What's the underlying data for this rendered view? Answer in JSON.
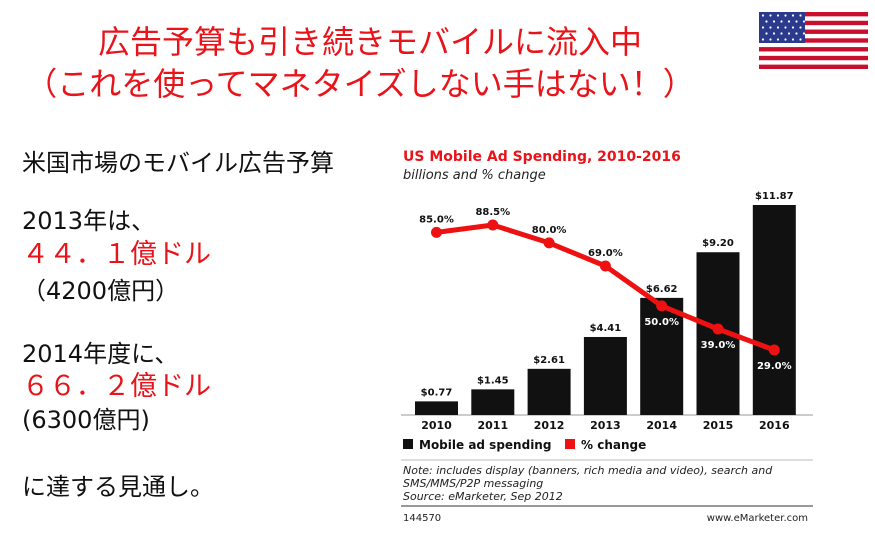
{
  "slide": {
    "headline_line1": "広告予算も引き続きモバイルに流入中",
    "headline_line2": "（これを使ってマネタイズしない手はない！）",
    "left": {
      "heading": "米国市場のモバイル広告予算",
      "y2013_label": "2013年は、",
      "y2013_value": "４４．１億ドル",
      "y2013_yen": "（4200億円）",
      "y2014_label": "2014年度に、",
      "y2014_value": "６６．２億ドル",
      "y2014_yen": "(6300億円)",
      "closing": "に達する見通し。"
    }
  },
  "colors": {
    "accent_red": "#e8141a",
    "bar": "#111111",
    "line": "#ee1111"
  },
  "chart_data": {
    "type": "bar",
    "title": "US Mobile Ad Spending, 2010-2016",
    "subtitle": "billions and % change",
    "categories": [
      "2010",
      "2011",
      "2012",
      "2013",
      "2014",
      "2015",
      "2016"
    ],
    "series": [
      {
        "name": "Mobile ad spending",
        "type": "bar",
        "values": [
          0.77,
          1.45,
          2.61,
          4.41,
          6.62,
          9.2,
          11.87
        ],
        "labels": [
          "$0.77",
          "$1.45",
          "$2.61",
          "$4.41",
          "$6.62",
          "$9.20",
          "$11.87"
        ]
      },
      {
        "name": "% change",
        "type": "line",
        "values": [
          85.0,
          88.5,
          80.0,
          69.0,
          50.0,
          39.0,
          29.0
        ],
        "labels": [
          "85.0%",
          "88.5%",
          "80.0%",
          "69.0%",
          "50.0%",
          "39.0%",
          "29.0%"
        ]
      }
    ],
    "note": "Note: includes display (banners, rich media and video), search and SMS/MMS/P2P messaging",
    "source": "Source: eMarketer, Sep 2012",
    "chart_id": "144570",
    "website": "www.eMarketer.com",
    "legend_position": "bottom-left"
  }
}
